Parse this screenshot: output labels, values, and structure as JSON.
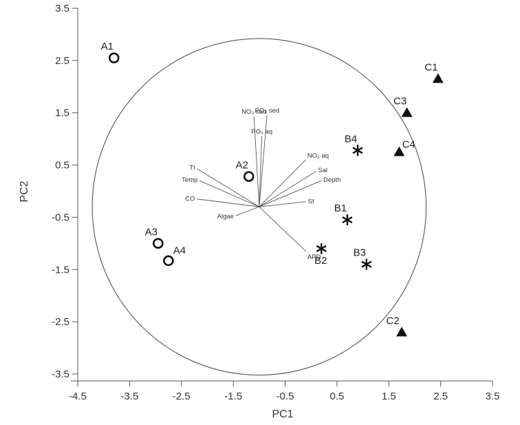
{
  "chart_data": {
    "type": "scatter",
    "title": "",
    "xlabel": "PC1",
    "ylabel": "PC2",
    "xlim": [
      -4.5,
      3.5
    ],
    "ylim": [
      -3.5,
      3.5
    ],
    "grid": false,
    "x_ticks": [
      "-4.5",
      "-3.5",
      "-2.5",
      "-1.5",
      "-0.5",
      "0.5",
      "1.5",
      "2.5",
      "3.5"
    ],
    "y_ticks": [
      "3.5",
      "2.5",
      "1.5",
      "0.5",
      "-0.5",
      "-1.5",
      "-2.5",
      "-3.5"
    ],
    "correlation_circle": {
      "center": [
        -1.0,
        -0.3
      ],
      "radius": 3.22
    },
    "vector_origin": [
      -1.0,
      -0.3
    ],
    "series": [
      {
        "marker": "circle",
        "points": [
          {
            "label": "A1",
            "x": -3.8,
            "y": 2.55
          },
          {
            "label": "A2",
            "x": -1.2,
            "y": 0.28
          },
          {
            "label": "A3",
            "x": -2.95,
            "y": -1.0
          },
          {
            "label": "A4",
            "x": -2.75,
            "y": -1.33
          }
        ]
      },
      {
        "marker": "asterisk",
        "points": [
          {
            "label": "B1",
            "x": 0.7,
            "y": -0.55
          },
          {
            "label": "B2",
            "x": 0.2,
            "y": -1.1
          },
          {
            "label": "B3",
            "x": 1.07,
            "y": -1.4
          },
          {
            "label": "B4",
            "x": 0.9,
            "y": 0.78
          }
        ]
      },
      {
        "marker": "triangle",
        "points": [
          {
            "label": "C1",
            "x": 2.45,
            "y": 2.15
          },
          {
            "label": "C2",
            "x": 1.75,
            "y": -2.7
          },
          {
            "label": "C3",
            "x": 1.85,
            "y": 1.5
          },
          {
            "label": "C4",
            "x": 1.7,
            "y": 0.75
          }
        ]
      }
    ],
    "vectors": [
      {
        "label": "NO₃ sed",
        "x": -1.1,
        "y": 1.43
      },
      {
        "label": "PO₄ sed",
        "x": -0.85,
        "y": 1.45
      },
      {
        "label": "PO₄ aq",
        "x": -0.95,
        "y": 1.05
      },
      {
        "label": "NO₃ aq",
        "x": -0.1,
        "y": 0.6
      },
      {
        "label": "Sal",
        "x": 0.1,
        "y": 0.38
      },
      {
        "label": "Depth",
        "x": 0.2,
        "y": 0.2
      },
      {
        "label": "Sf",
        "x": -0.1,
        "y": -0.2
      },
      {
        "label": "APD",
        "x": -0.1,
        "y": -1.15
      },
      {
        "label": "Tt",
        "x": -2.2,
        "y": 0.43
      },
      {
        "label": "Temp",
        "x": -2.15,
        "y": 0.2
      },
      {
        "label": "CO",
        "x": -2.2,
        "y": -0.15
      },
      {
        "label": "Algae",
        "x": -1.45,
        "y": -0.47
      }
    ]
  }
}
